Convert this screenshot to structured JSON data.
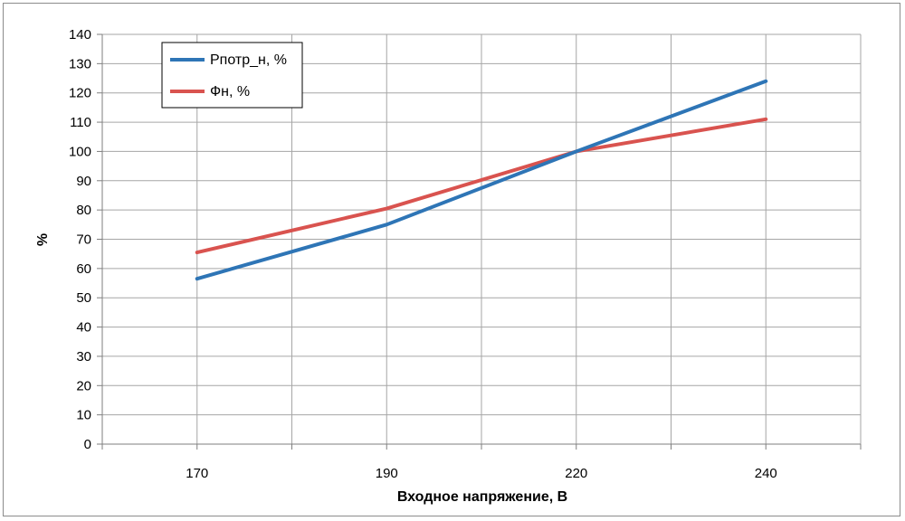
{
  "chart_data": {
    "type": "line",
    "categories": [
      "170",
      "190",
      "220",
      "240"
    ],
    "x_minor_categories": [
      "",
      "",
      "",
      ""
    ],
    "series": [
      {
        "name": "Pпотр_н, %",
        "values": [
          56.5,
          75,
          100,
          124
        ],
        "color": "#2e75b6"
      },
      {
        "name": "Фн, %",
        "values": [
          65.5,
          80.5,
          100,
          111
        ],
        "color": "#d9534f"
      }
    ],
    "title": "",
    "xlabel": "Входное напряжение, В",
    "ylabel": "%",
    "ylim": [
      0,
      140
    ],
    "yticks": [
      "0",
      "10",
      "20",
      "30",
      "40",
      "50",
      "60",
      "70",
      "80",
      "90",
      "100",
      "110",
      "120",
      "130",
      "140"
    ],
    "grid": true,
    "legend_position": "top-left"
  }
}
